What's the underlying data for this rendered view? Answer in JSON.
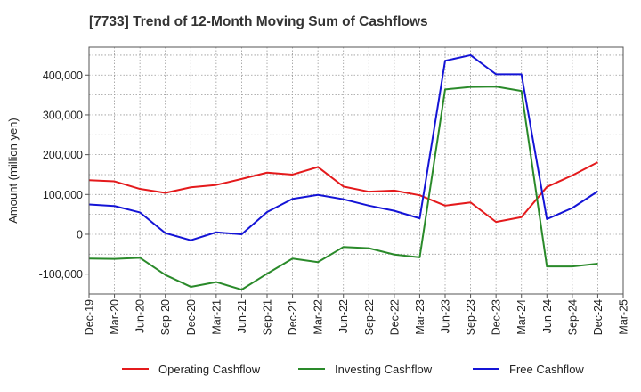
{
  "chart_data": {
    "type": "line",
    "title": "[7733]  Trend of 12-Month Moving Sum of Cashflows",
    "xlabel": "",
    "ylabel": "Amount (million yen)",
    "categories": [
      "Dec-19",
      "Mar-20",
      "Jun-20",
      "Sep-20",
      "Dec-20",
      "Mar-21",
      "Jun-21",
      "Sep-21",
      "Dec-21",
      "Mar-22",
      "Jun-22",
      "Sep-22",
      "Dec-22",
      "Mar-23",
      "Jun-23",
      "Sep-23",
      "Dec-23",
      "Mar-24",
      "Jun-24",
      "Sep-24",
      "Dec-24",
      "Mar-25"
    ],
    "ylim": [
      -150000,
      470000
    ],
    "yticks": [
      -100000,
      0,
      100000,
      200000,
      300000,
      400000
    ],
    "ytick_labels": [
      "-100,000",
      "0",
      "100,000",
      "200,000",
      "300,000",
      "400,000"
    ],
    "grid": true,
    "legend_position": "bottom",
    "series": [
      {
        "name": "Operating Cashflow",
        "color": "#e41a1c",
        "values": [
          136000,
          133000,
          114000,
          104000,
          118000,
          124000,
          139000,
          155000,
          150000,
          169000,
          120000,
          107000,
          110000,
          98000,
          72000,
          80000,
          31000,
          43000,
          119000,
          148000,
          181000,
          null
        ]
      },
      {
        "name": "Investing Cashflow",
        "color": "#2a8a2a",
        "values": [
          -61000,
          -62000,
          -59000,
          -102000,
          -132000,
          -120000,
          -139000,
          -99000,
          -61000,
          -70000,
          -32000,
          -35000,
          -51000,
          -58000,
          364000,
          370000,
          371000,
          360000,
          -81000,
          -81000,
          -74000,
          null
        ]
      },
      {
        "name": "Free Cashflow",
        "color": "#1414d6",
        "values": [
          75000,
          71000,
          55000,
          3000,
          -15000,
          5000,
          0,
          56000,
          89000,
          99000,
          88000,
          72000,
          59000,
          40000,
          436000,
          450000,
          402000,
          402000,
          38000,
          66000,
          108000,
          null
        ]
      }
    ]
  }
}
